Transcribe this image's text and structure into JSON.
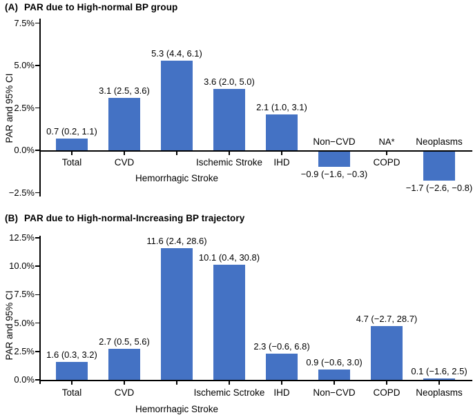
{
  "figure": {
    "background": "#ffffff",
    "bar_color": "#4472C4",
    "axis_color": "#000000",
    "text_color": "#000000"
  },
  "chart_data": [
    {
      "type": "bar",
      "panel_label": "(A)",
      "title": "PAR due to High-normal BP group",
      "ylabel": "PAR and 95% CI",
      "xlabel": "",
      "ylim": [
        -2.5,
        7.5
      ],
      "grid": false,
      "legend_position": "none",
      "ytick_values": [
        7.5,
        5.0,
        2.5,
        0.0,
        -2.5
      ],
      "ytick_labels": [
        "7.5%",
        "5.0%",
        "2.5%",
        "0.0%",
        "−2.5%"
      ],
      "categories": [
        "Total",
        "CVD",
        "Hemorrhagic Stroke",
        "Ischemic Stroke",
        "IHD",
        "Non−CVD",
        "COPD",
        "Neoplasms"
      ],
      "values": [
        0.7,
        3.1,
        5.3,
        3.6,
        2.1,
        -0.9,
        null,
        -1.7
      ],
      "value_labels": [
        "0.7 (0.2, 1.1)",
        "3.1 (2.5, 3.6)",
        "5.3 (4.4, 6.1)",
        "3.6 (2.0, 5.0)",
        "2.1 (1.0, 3.1)",
        "−0.9 (−1.6, −0.3)",
        "NA*",
        "−1.7 (−2.6, −0.8)"
      ],
      "category_label_rows": [
        "below",
        "below",
        "below2",
        "below",
        "below",
        "above",
        "below",
        "above"
      ]
    },
    {
      "type": "bar",
      "panel_label": "(B)",
      "title": "PAR due to High-normal-Increasing BP trajectory",
      "ylabel": "PAR and 95% CI",
      "xlabel": "",
      "ylim": [
        0,
        12.5
      ],
      "grid": false,
      "legend_position": "none",
      "ytick_values": [
        12.5,
        10.0,
        7.5,
        5.0,
        2.5,
        0.0
      ],
      "ytick_labels": [
        "12.5%",
        "10.0%",
        "7.5%",
        "5.0%",
        "2.5%",
        "0.0%"
      ],
      "categories": [
        "Total",
        "CVD",
        "Hemorrhagic Stroke",
        "Ischemic Sctroke",
        "IHD",
        "Non−CVD",
        "COPD",
        "Neoplasms"
      ],
      "values": [
        1.6,
        2.7,
        11.6,
        10.1,
        2.3,
        0.9,
        4.7,
        0.1
      ],
      "value_labels": [
        "1.6 (0.3, 3.2)",
        "2.7 (0.5, 5.6)",
        "11.6 (2.4, 28.6)",
        "10.1 (0.4, 30.8)",
        "2.3 (−0.6, 6.8)",
        "0.9 (−0.6, 3.0)",
        "4.7 (−2.7, 28.7)",
        "0.1 (−1.6, 2.5)"
      ],
      "category_label_rows": [
        "below",
        "below",
        "below2",
        "below",
        "below",
        "below",
        "below",
        "below"
      ]
    }
  ]
}
